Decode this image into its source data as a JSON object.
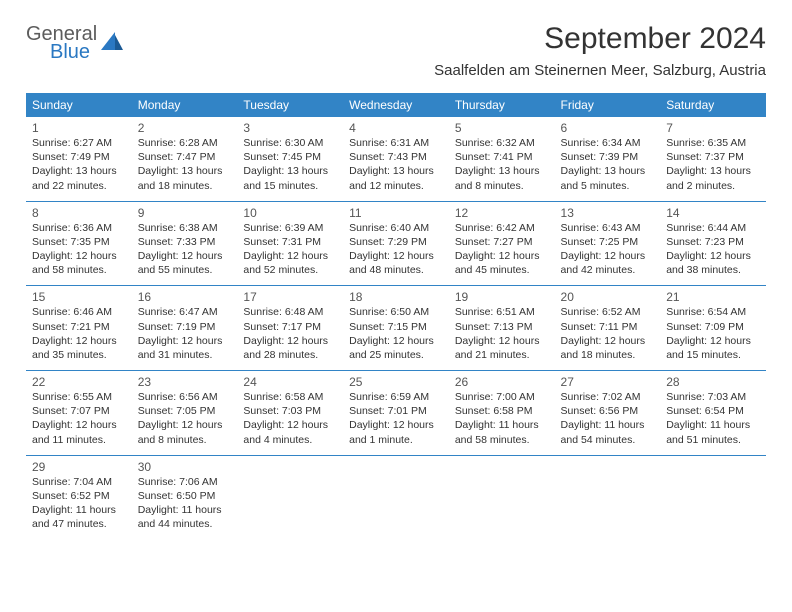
{
  "logo": {
    "general": "General",
    "blue": "Blue"
  },
  "title": "September 2024",
  "location": "Saalfelden am Steinernen Meer, Salzburg, Austria",
  "colors": {
    "header_bg": "#3284c6",
    "header_text": "#ffffff",
    "border": "#3284c6",
    "page_bg": "#ffffff",
    "text": "#333333",
    "logo_gray": "#5c5c5c",
    "logo_blue": "#2a78c2"
  },
  "weekdays": [
    "Sunday",
    "Monday",
    "Tuesday",
    "Wednesday",
    "Thursday",
    "Friday",
    "Saturday"
  ],
  "weeks": [
    [
      {
        "day": "1",
        "sunrise": "Sunrise: 6:27 AM",
        "sunset": "Sunset: 7:49 PM",
        "dl1": "Daylight: 13 hours",
        "dl2": "and 22 minutes."
      },
      {
        "day": "2",
        "sunrise": "Sunrise: 6:28 AM",
        "sunset": "Sunset: 7:47 PM",
        "dl1": "Daylight: 13 hours",
        "dl2": "and 18 minutes."
      },
      {
        "day": "3",
        "sunrise": "Sunrise: 6:30 AM",
        "sunset": "Sunset: 7:45 PM",
        "dl1": "Daylight: 13 hours",
        "dl2": "and 15 minutes."
      },
      {
        "day": "4",
        "sunrise": "Sunrise: 6:31 AM",
        "sunset": "Sunset: 7:43 PM",
        "dl1": "Daylight: 13 hours",
        "dl2": "and 12 minutes."
      },
      {
        "day": "5",
        "sunrise": "Sunrise: 6:32 AM",
        "sunset": "Sunset: 7:41 PM",
        "dl1": "Daylight: 13 hours",
        "dl2": "and 8 minutes."
      },
      {
        "day": "6",
        "sunrise": "Sunrise: 6:34 AM",
        "sunset": "Sunset: 7:39 PM",
        "dl1": "Daylight: 13 hours",
        "dl2": "and 5 minutes."
      },
      {
        "day": "7",
        "sunrise": "Sunrise: 6:35 AM",
        "sunset": "Sunset: 7:37 PM",
        "dl1": "Daylight: 13 hours",
        "dl2": "and 2 minutes."
      }
    ],
    [
      {
        "day": "8",
        "sunrise": "Sunrise: 6:36 AM",
        "sunset": "Sunset: 7:35 PM",
        "dl1": "Daylight: 12 hours",
        "dl2": "and 58 minutes."
      },
      {
        "day": "9",
        "sunrise": "Sunrise: 6:38 AM",
        "sunset": "Sunset: 7:33 PM",
        "dl1": "Daylight: 12 hours",
        "dl2": "and 55 minutes."
      },
      {
        "day": "10",
        "sunrise": "Sunrise: 6:39 AM",
        "sunset": "Sunset: 7:31 PM",
        "dl1": "Daylight: 12 hours",
        "dl2": "and 52 minutes."
      },
      {
        "day": "11",
        "sunrise": "Sunrise: 6:40 AM",
        "sunset": "Sunset: 7:29 PM",
        "dl1": "Daylight: 12 hours",
        "dl2": "and 48 minutes."
      },
      {
        "day": "12",
        "sunrise": "Sunrise: 6:42 AM",
        "sunset": "Sunset: 7:27 PM",
        "dl1": "Daylight: 12 hours",
        "dl2": "and 45 minutes."
      },
      {
        "day": "13",
        "sunrise": "Sunrise: 6:43 AM",
        "sunset": "Sunset: 7:25 PM",
        "dl1": "Daylight: 12 hours",
        "dl2": "and 42 minutes."
      },
      {
        "day": "14",
        "sunrise": "Sunrise: 6:44 AM",
        "sunset": "Sunset: 7:23 PM",
        "dl1": "Daylight: 12 hours",
        "dl2": "and 38 minutes."
      }
    ],
    [
      {
        "day": "15",
        "sunrise": "Sunrise: 6:46 AM",
        "sunset": "Sunset: 7:21 PM",
        "dl1": "Daylight: 12 hours",
        "dl2": "and 35 minutes."
      },
      {
        "day": "16",
        "sunrise": "Sunrise: 6:47 AM",
        "sunset": "Sunset: 7:19 PM",
        "dl1": "Daylight: 12 hours",
        "dl2": "and 31 minutes."
      },
      {
        "day": "17",
        "sunrise": "Sunrise: 6:48 AM",
        "sunset": "Sunset: 7:17 PM",
        "dl1": "Daylight: 12 hours",
        "dl2": "and 28 minutes."
      },
      {
        "day": "18",
        "sunrise": "Sunrise: 6:50 AM",
        "sunset": "Sunset: 7:15 PM",
        "dl1": "Daylight: 12 hours",
        "dl2": "and 25 minutes."
      },
      {
        "day": "19",
        "sunrise": "Sunrise: 6:51 AM",
        "sunset": "Sunset: 7:13 PM",
        "dl1": "Daylight: 12 hours",
        "dl2": "and 21 minutes."
      },
      {
        "day": "20",
        "sunrise": "Sunrise: 6:52 AM",
        "sunset": "Sunset: 7:11 PM",
        "dl1": "Daylight: 12 hours",
        "dl2": "and 18 minutes."
      },
      {
        "day": "21",
        "sunrise": "Sunrise: 6:54 AM",
        "sunset": "Sunset: 7:09 PM",
        "dl1": "Daylight: 12 hours",
        "dl2": "and 15 minutes."
      }
    ],
    [
      {
        "day": "22",
        "sunrise": "Sunrise: 6:55 AM",
        "sunset": "Sunset: 7:07 PM",
        "dl1": "Daylight: 12 hours",
        "dl2": "and 11 minutes."
      },
      {
        "day": "23",
        "sunrise": "Sunrise: 6:56 AM",
        "sunset": "Sunset: 7:05 PM",
        "dl1": "Daylight: 12 hours",
        "dl2": "and 8 minutes."
      },
      {
        "day": "24",
        "sunrise": "Sunrise: 6:58 AM",
        "sunset": "Sunset: 7:03 PM",
        "dl1": "Daylight: 12 hours",
        "dl2": "and 4 minutes."
      },
      {
        "day": "25",
        "sunrise": "Sunrise: 6:59 AM",
        "sunset": "Sunset: 7:01 PM",
        "dl1": "Daylight: 12 hours",
        "dl2": "and 1 minute."
      },
      {
        "day": "26",
        "sunrise": "Sunrise: 7:00 AM",
        "sunset": "Sunset: 6:58 PM",
        "dl1": "Daylight: 11 hours",
        "dl2": "and 58 minutes."
      },
      {
        "day": "27",
        "sunrise": "Sunrise: 7:02 AM",
        "sunset": "Sunset: 6:56 PM",
        "dl1": "Daylight: 11 hours",
        "dl2": "and 54 minutes."
      },
      {
        "day": "28",
        "sunrise": "Sunrise: 7:03 AM",
        "sunset": "Sunset: 6:54 PM",
        "dl1": "Daylight: 11 hours",
        "dl2": "and 51 minutes."
      }
    ],
    [
      {
        "day": "29",
        "sunrise": "Sunrise: 7:04 AM",
        "sunset": "Sunset: 6:52 PM",
        "dl1": "Daylight: 11 hours",
        "dl2": "and 47 minutes."
      },
      {
        "day": "30",
        "sunrise": "Sunrise: 7:06 AM",
        "sunset": "Sunset: 6:50 PM",
        "dl1": "Daylight: 11 hours",
        "dl2": "and 44 minutes."
      },
      null,
      null,
      null,
      null,
      null
    ]
  ]
}
